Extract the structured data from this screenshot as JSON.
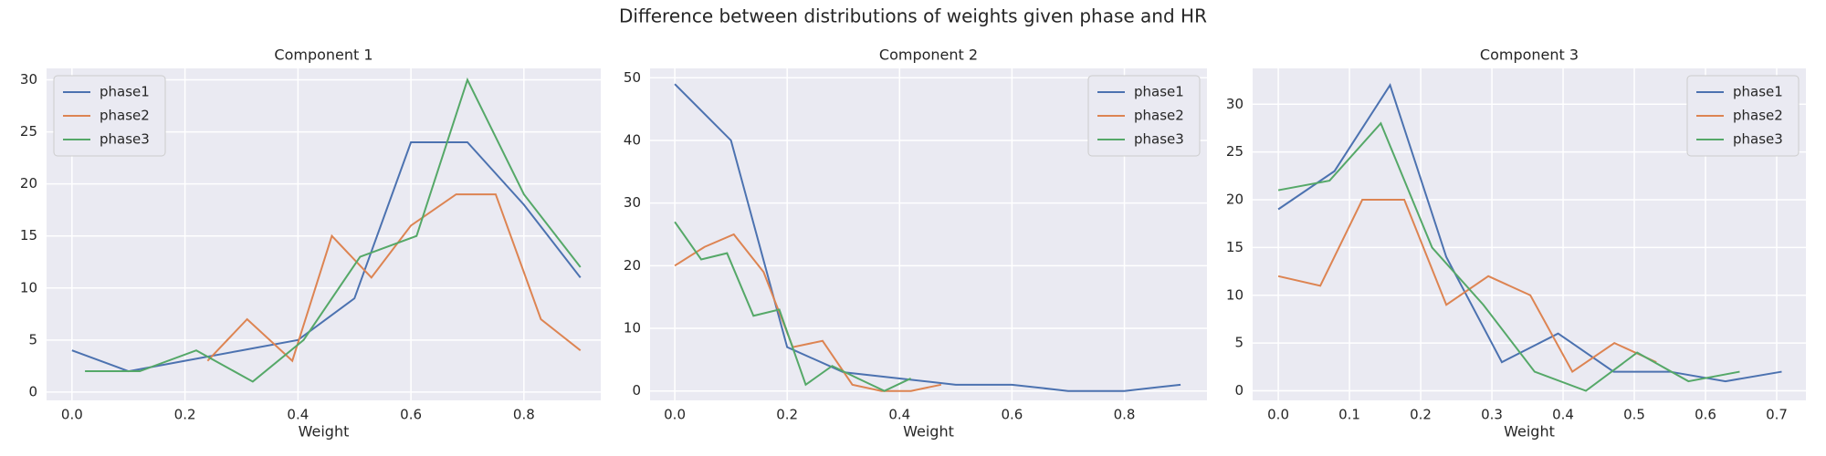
{
  "title": "Difference between distributions of weights given phase and HR",
  "chart_data": [
    {
      "type": "line",
      "title": "Component 1",
      "x_label": "Weight",
      "legend": "upper left",
      "grid": true,
      "xlim": [
        -0.045,
        0.936
      ],
      "ylim": [
        -0.8,
        31.1
      ],
      "xticks": [
        {
          "value": 0,
          "label": "0.0"
        },
        {
          "value": 0.2,
          "label": "0.2"
        },
        {
          "value": 0.4,
          "label": "0.4"
        },
        {
          "value": 0.6,
          "label": "0.6"
        },
        {
          "value": 0.8,
          "label": "0.8"
        }
      ],
      "yticks": [
        0,
        5,
        10,
        15,
        20,
        25,
        30
      ],
      "series": [
        {
          "name": "phase1",
          "color": "#4c72b0",
          "x": [
            0,
            0.1,
            0.2,
            0.3,
            0.4,
            0.5,
            0.6,
            0.7,
            0.8,
            0.9
          ],
          "values": [
            4,
            2,
            3,
            4,
            5,
            9,
            24,
            24,
            18,
            11
          ]
        },
        {
          "name": "phase2",
          "color": "#dd8452",
          "x": [
            0.24,
            0.31,
            0.39,
            0.46,
            0.53,
            0.6,
            0.68,
            0.75,
            0.83,
            0.9
          ],
          "values": [
            3,
            7,
            3,
            15,
            11,
            16,
            19,
            19,
            7,
            4
          ]
        },
        {
          "name": "phase3",
          "color": "#55a868",
          "x": [
            0.023,
            0.12,
            0.22,
            0.32,
            0.41,
            0.51,
            0.61,
            0.7,
            0.8,
            0.9
          ],
          "values": [
            2,
            2,
            4,
            1,
            5,
            13,
            15,
            30,
            19,
            12
          ]
        }
      ]
    },
    {
      "type": "line",
      "title": "Component 2",
      "x_label": "Weight",
      "legend": "upper right",
      "grid": true,
      "xlim": [
        -0.044,
        0.947
      ],
      "ylim": [
        -1.5,
        51.5
      ],
      "xticks": [
        {
          "value": 0,
          "label": "0.0"
        },
        {
          "value": 0.2,
          "label": "0.2"
        },
        {
          "value": 0.4,
          "label": "0.4"
        },
        {
          "value": 0.6,
          "label": "0.6"
        },
        {
          "value": 0.8,
          "label": "0.8"
        }
      ],
      "yticks": [
        0,
        10,
        20,
        30,
        40,
        50
      ],
      "series": [
        {
          "name": "phase1",
          "color": "#4c72b0",
          "x": [
            0,
            0.1,
            0.2,
            0.3,
            0.4,
            0.5,
            0.6,
            0.7,
            0.8,
            0.9
          ],
          "values": [
            49,
            40,
            7,
            3,
            2,
            1,
            1,
            0,
            0,
            1
          ]
        },
        {
          "name": "phase2",
          "color": "#dd8452",
          "x": [
            0,
            0.053,
            0.105,
            0.158,
            0.21,
            0.263,
            0.316,
            0.368,
            0.42,
            0.474
          ],
          "values": [
            20,
            23,
            25,
            19,
            7,
            8,
            1,
            0,
            0,
            1
          ]
        },
        {
          "name": "phase3",
          "color": "#55a868",
          "x": [
            0,
            0.047,
            0.093,
            0.14,
            0.186,
            0.233,
            0.28,
            0.326,
            0.373,
            0.42
          ],
          "values": [
            27,
            21,
            22,
            12,
            13,
            1,
            4,
            2,
            0,
            2
          ]
        }
      ]
    },
    {
      "type": "line",
      "title": "Component 3",
      "x_label": "Weight",
      "legend": "upper right",
      "grid": true,
      "xlim": [
        -0.036,
        0.741
      ],
      "ylim": [
        -1,
        33.75
      ],
      "xticks": [
        {
          "value": 0,
          "label": "0.0"
        },
        0.1,
        0.2,
        0.3,
        0.4,
        0.5,
        0.6,
        0.7
      ],
      "yticks": [
        0,
        5,
        10,
        15,
        20,
        25,
        30
      ],
      "series": [
        {
          "name": "phase1",
          "color": "#4c72b0",
          "x": [
            0,
            0.079,
            0.157,
            0.236,
            0.314,
            0.393,
            0.471,
            0.55,
            0.628,
            0.707
          ],
          "values": [
            19,
            23,
            32,
            14,
            3,
            6,
            2,
            2,
            1,
            2
          ]
        },
        {
          "name": "phase2",
          "color": "#dd8452",
          "x": [
            0,
            0.059,
            0.118,
            0.177,
            0.236,
            0.295,
            0.354,
            0.413,
            0.472,
            0.531
          ],
          "values": [
            12,
            11,
            20,
            20,
            9,
            12,
            10,
            2,
            5,
            3
          ]
        },
        {
          "name": "phase3",
          "color": "#55a868",
          "x": [
            0,
            0.072,
            0.144,
            0.216,
            0.288,
            0.36,
            0.432,
            0.504,
            0.576,
            0.648
          ],
          "values": [
            21,
            22,
            28,
            15,
            9,
            2,
            0,
            4,
            1,
            2
          ]
        }
      ]
    }
  ]
}
